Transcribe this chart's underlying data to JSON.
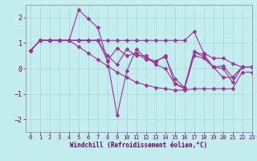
{
  "xlabel": "Windchill (Refroidissement éolien,°C)",
  "ylabel": "",
  "xlim": [
    -0.5,
    23
  ],
  "ylim": [
    -2.5,
    2.5
  ],
  "yticks": [
    -2,
    -1,
    0,
    1,
    2
  ],
  "xticks": [
    0,
    1,
    2,
    3,
    4,
    5,
    6,
    7,
    8,
    9,
    10,
    11,
    12,
    13,
    14,
    15,
    16,
    17,
    18,
    19,
    20,
    21,
    22,
    23
  ],
  "background_color": "#c5edf0",
  "grid_color": "#aad4d8",
  "line_color": "#993399",
  "lines": [
    {
      "x": [
        0,
        1,
        2,
        3,
        4,
        5,
        6,
        7,
        8,
        9,
        10,
        11,
        12,
        13,
        14,
        15,
        16,
        17,
        18,
        19,
        20,
        21,
        22,
        23
      ],
      "y": [
        0.7,
        1.1,
        1.1,
        1.1,
        1.1,
        2.3,
        1.95,
        1.6,
        0.3,
        0.8,
        0.5,
        0.6,
        0.35,
        0.25,
        0.5,
        -0.6,
        -0.75,
        0.65,
        0.55,
        0.05,
        0.1,
        -0.35,
        0.05,
        0.05
      ]
    },
    {
      "x": [
        0,
        1,
        2,
        3,
        4,
        5,
        6,
        7,
        8,
        9,
        10,
        11,
        12,
        13,
        14,
        15,
        16,
        17,
        18,
        19,
        20,
        21,
        22,
        23
      ],
      "y": [
        0.7,
        1.1,
        1.1,
        1.1,
        1.1,
        1.1,
        1.1,
        1.1,
        0.3,
        -1.85,
        -0.1,
        0.75,
        0.4,
        0.3,
        0.45,
        -0.4,
        -0.75,
        0.65,
        0.45,
        0.05,
        -0.35,
        -0.35,
        0.05,
        0.05
      ]
    },
    {
      "x": [
        0,
        1,
        2,
        3,
        4,
        5,
        6,
        7,
        8,
        9,
        10,
        11,
        12,
        13,
        14,
        15,
        16,
        17,
        18,
        19,
        20,
        21,
        22,
        23
      ],
      "y": [
        0.7,
        1.1,
        1.1,
        1.1,
        1.1,
        1.1,
        1.1,
        1.1,
        1.1,
        1.1,
        1.1,
        1.1,
        1.1,
        1.1,
        1.1,
        1.1,
        1.1,
        1.45,
        0.6,
        0.4,
        0.4,
        0.2,
        0.05,
        0.05
      ]
    },
    {
      "x": [
        0,
        1,
        2,
        3,
        4,
        5,
        6,
        7,
        8,
        9,
        10,
        11,
        12,
        13,
        14,
        15,
        16,
        17,
        18,
        19,
        20,
        21,
        22,
        23
      ],
      "y": [
        0.7,
        1.1,
        1.1,
        1.1,
        1.1,
        0.85,
        0.6,
        0.35,
        0.1,
        -0.15,
        -0.35,
        -0.55,
        -0.65,
        -0.75,
        -0.8,
        -0.85,
        -0.85,
        -0.8,
        -0.8,
        -0.8,
        -0.8,
        -0.8,
        -0.15,
        -0.15
      ]
    },
    {
      "x": [
        0,
        1,
        2,
        3,
        4,
        5,
        6,
        7,
        8,
        9,
        10,
        11,
        12,
        13,
        14,
        15,
        16,
        17,
        18,
        19,
        20,
        21,
        22,
        23
      ],
      "y": [
        0.7,
        1.1,
        1.1,
        1.1,
        1.1,
        1.1,
        1.1,
        1.1,
        0.5,
        0.15,
        0.75,
        0.5,
        0.5,
        0.15,
        0.0,
        -0.6,
        -0.8,
        0.5,
        0.4,
        0.05,
        0.0,
        -0.55,
        0.05,
        0.05
      ]
    }
  ],
  "marker": "D",
  "markersize": 2.5,
  "linewidth": 0.8
}
